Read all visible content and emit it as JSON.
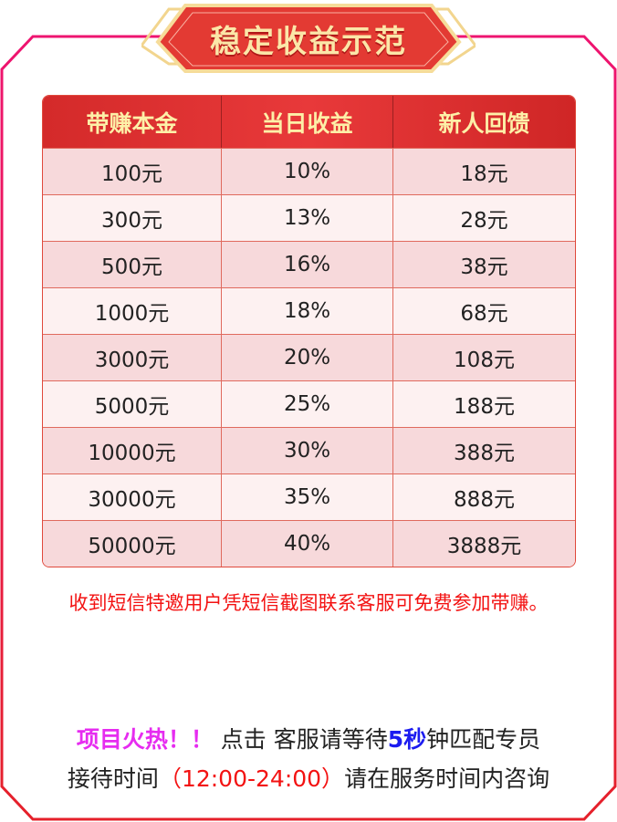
{
  "banner": {
    "title": "稳定收益示范"
  },
  "table": {
    "headers": [
      "带赚本金",
      "当日收益",
      "新人回馈"
    ],
    "rows": [
      [
        "100元",
        "10%",
        "18元"
      ],
      [
        "300元",
        "13%",
        "28元"
      ],
      [
        "500元",
        "16%",
        "38元"
      ],
      [
        "1000元",
        "18%",
        "68元"
      ],
      [
        "3000元",
        "20%",
        "108元"
      ],
      [
        "5000元",
        "25%",
        "188元"
      ],
      [
        "10000元",
        "30%",
        "388元"
      ],
      [
        "30000元",
        "35%",
        "888元"
      ],
      [
        "50000元",
        "40%",
        "3888元"
      ]
    ]
  },
  "notice": "收到短信特邀用户凭短信截图联系客服可免费参加带赚。",
  "footer": {
    "hot": "项目火热！！",
    "click": " 点击 客服请等待",
    "seconds": "5秒",
    "rest": "钟匹配专员",
    "hours_label": "接待时间",
    "hours": "（12:00-24:00）",
    "hours_rest": "请在服务时间内咨询"
  },
  "colors": {
    "frame_top": "#ee1470",
    "frame_bottom": "#e5202a",
    "header": "#e03333",
    "header_text": "#fdf0a8",
    "notice": "#f31212",
    "hot": "#e62cf0",
    "seconds": "#1c1cf0"
  }
}
